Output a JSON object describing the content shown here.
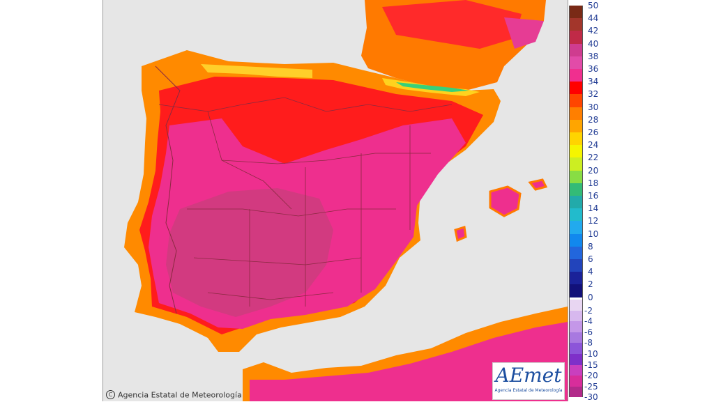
{
  "map": {
    "copyright_text": "Agencia Estatal de Meteorología",
    "logo": {
      "wordmark": "AEmet",
      "subtitle": "Agencia Estatal de Meteorología",
      "accent": "#1d4fa0"
    },
    "sea_color": "#e6e6e6",
    "land_colors": {
      "very_hot": "#d8357d",
      "hot": "#ec2c8e",
      "red": "#ff1f1f",
      "orange": "#ff7b00",
      "yellow": "#ffd21e",
      "green": "#38d07a"
    }
  },
  "legend": {
    "upper_labels": [
      "50",
      "44",
      "42",
      "40",
      "38",
      "36",
      "34",
      "32",
      "30",
      "28",
      "26",
      "24",
      "22",
      "20",
      "18",
      "16",
      "14",
      "12",
      "10",
      "8",
      "6",
      "4",
      "2",
      "0"
    ],
    "upper_colors": [
      "#7a2a16",
      "#a3362b",
      "#c02a47",
      "#cf3c8f",
      "#e24ba8",
      "#f02f8f",
      "#ff0000",
      "#ff4500",
      "#ff7f00",
      "#ffa500",
      "#ffd400",
      "#f5f500",
      "#ccee22",
      "#88dd44",
      "#33bb77",
      "#22aaaa",
      "#22bbcc",
      "#22aaee",
      "#1188ee",
      "#2266dd",
      "#2244bb",
      "#1a2299",
      "#12117a",
      "#ffffff"
    ],
    "lower_labels": [
      "-2",
      "-4",
      "-6",
      "-8",
      "-10",
      "-15",
      "-20",
      "-25",
      "-30"
    ],
    "lower_colors": [
      "#e8d6f2",
      "#d7b8ee",
      "#c497e8",
      "#a879e0",
      "#8c55d9",
      "#7e30c9",
      "#c93fbf",
      "#d82d9b",
      "#b22a8a"
    ]
  }
}
